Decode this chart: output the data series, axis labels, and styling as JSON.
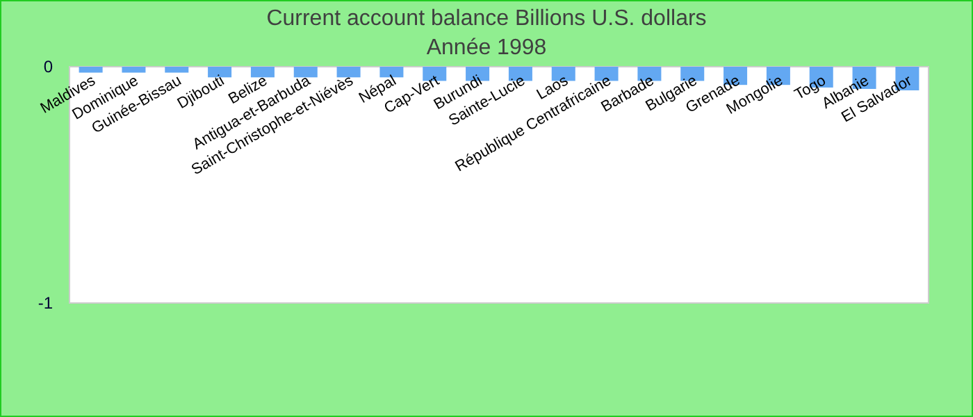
{
  "chart_data": {
    "type": "bar",
    "title": "Current account balance Billions U.S. dollars",
    "subtitle": "Année 1998",
    "categories": [
      "Maldives",
      "Dominique",
      "Guinée-Bissau",
      "Djibouti",
      "Belize",
      "Antigua-et-Barbuda",
      "Saint-Christophe-et-Niévès",
      "Népal",
      "Cap-Vert",
      "Burundi",
      "Sainte-Lucie",
      "Laos",
      "République Centrafricaine",
      "Barbade",
      "Bulgarie",
      "Grenade",
      "Mongolie",
      "Togo",
      "Albanie",
      "El Salvador"
    ],
    "values": [
      -0.025,
      -0.025,
      -0.025,
      -0.045,
      -0.045,
      -0.045,
      -0.045,
      -0.045,
      -0.06,
      -0.06,
      -0.06,
      -0.06,
      -0.06,
      -0.06,
      -0.06,
      -0.077,
      -0.077,
      -0.088,
      -0.094,
      -0.1
    ],
    "color": "#63a8f2",
    "ylim": [
      -1,
      0
    ],
    "yticks": [
      0,
      -1
    ]
  }
}
